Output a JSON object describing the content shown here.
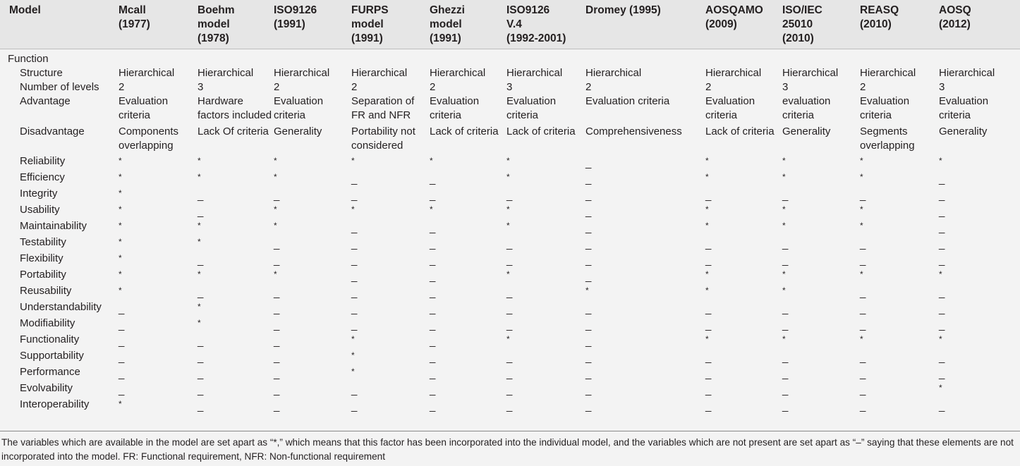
{
  "header": {
    "columns": [
      "Model",
      "Mcall\n(1977)",
      "Boehm\nmodel\n(1978)",
      "ISO9126\n(1991)",
      "FURPS\nmodel\n(1991)",
      "Ghezzi\nmodel\n(1991)",
      "ISO9126\nV.4\n(1992-2001)",
      "Dromey (1995)",
      "AOSQAMO\n(2009)",
      "ISO/IEC\n25010\n(2010)",
      "REASQ\n(2010)",
      "AOSQ\n(2012)"
    ]
  },
  "section_label": "Function",
  "rows": [
    {
      "label": "Structure",
      "values": [
        "Hierarchical",
        "Hierarchical",
        "Hierarchical",
        "Hierarchical",
        "Hierarchical",
        "Hierarchical",
        "Hierarchical",
        "Hierarchical",
        "Hierarchical",
        "Hierarchical",
        "Hierarchical"
      ]
    },
    {
      "label": "Number of levels",
      "values": [
        "2",
        "3",
        "2",
        "2",
        "2",
        "3",
        "2",
        "2",
        "3",
        "2",
        "3"
      ]
    },
    {
      "label": "Advantage",
      "values": [
        "Evaluation criteria",
        "Hardware factors included",
        "Evaluation criteria",
        "Separation of FR and NFR",
        "Evaluation criteria",
        "Evaluation criteria",
        "Evaluation criteria",
        "Evaluation criteria",
        "evaluation criteria",
        "Evaluation criteria",
        "Evaluation criteria"
      ]
    },
    {
      "label": "Disadvantage",
      "values": [
        "Components overlapping",
        "Lack Of criteria",
        "Generality",
        "Portability not considered",
        "Lack of criteria",
        "Lack of criteria",
        "Comprehensiveness",
        "Lack of criteria",
        "Generality",
        "Segments overlapping",
        "Generality"
      ]
    }
  ],
  "factors": [
    {
      "label": "Reliability",
      "values": [
        "*",
        "*",
        "*",
        "*",
        "*",
        "*",
        "_",
        "*",
        "*",
        "*",
        "*"
      ]
    },
    {
      "label": "Efficiency",
      "values": [
        "*",
        "*",
        "*",
        "_",
        "_",
        "*",
        "_",
        "*",
        "*",
        "*",
        "_"
      ]
    },
    {
      "label": "Integrity",
      "values": [
        "*",
        "_",
        "_",
        "_",
        "_",
        "_",
        "_",
        "_",
        "_",
        "_",
        "_"
      ]
    },
    {
      "label": "Usability",
      "values": [
        "*",
        "_",
        "*",
        "*",
        "*",
        "*",
        "_",
        "*",
        "*",
        "*",
        "_"
      ]
    },
    {
      "label": "Maintainability",
      "values": [
        "*",
        "*",
        "*",
        "_",
        "_",
        "*",
        "_",
        "*",
        "*",
        "*",
        "_"
      ]
    },
    {
      "label": "Testability",
      "values": [
        "*",
        "*",
        "_",
        "_",
        "_",
        "_",
        "_",
        "_",
        "_",
        "_",
        "_"
      ]
    },
    {
      "label": "Flexibility",
      "values": [
        "*",
        "_",
        "_",
        "_",
        "_",
        "_",
        "_",
        "_",
        "_",
        "_",
        "_"
      ]
    },
    {
      "label": "Portability",
      "values": [
        "*",
        "*",
        "*",
        "_",
        "_",
        "*",
        "_",
        "*",
        "*",
        "*",
        "*"
      ]
    },
    {
      "label": "Reusability",
      "values": [
        "*",
        "_",
        "_",
        "_",
        "_",
        "_",
        "*",
        "*",
        "*",
        "_",
        "_"
      ]
    },
    {
      "label": "Understandability",
      "values": [
        "_",
        "*",
        "_",
        "_",
        "_",
        "_",
        "_",
        "_",
        "_",
        "_",
        "_"
      ]
    },
    {
      "label": "Modifiability",
      "values": [
        "_",
        "*",
        "_",
        "_",
        "_",
        "_",
        "_",
        "_",
        "_",
        "_",
        "_"
      ]
    },
    {
      "label": "Functionality",
      "values": [
        "_",
        "_",
        "_",
        "*",
        "_",
        "*",
        "_",
        "*",
        "*",
        "*",
        "*"
      ]
    },
    {
      "label": "Supportability",
      "values": [
        "_",
        "_",
        "_",
        "*",
        "_",
        "_",
        "_",
        "_",
        "_",
        "_",
        "_"
      ]
    },
    {
      "label": "Performance",
      "values": [
        "_",
        "_",
        "_",
        "*",
        "_",
        "_",
        "_",
        "_",
        "_",
        "_",
        "_"
      ]
    },
    {
      "label": "Evolvability",
      "values": [
        "_",
        "_",
        "_",
        "_",
        "_",
        "_",
        "_",
        "_",
        "_",
        "_",
        "*"
      ]
    },
    {
      "label": "Interoperability",
      "values": [
        "*",
        "_",
        "_",
        "_",
        "_",
        "_",
        "_",
        "_",
        "_",
        "_",
        "_"
      ]
    }
  ],
  "footnote": "The variables which are available in the model are set apart as “*,” which means that this factor has been incorporated into the individual model, and the variables which are not present are set apart as “–” saying that these elements are not incorporated into the model. FR: Functional requirement, NFR: Non-functional requirement"
}
